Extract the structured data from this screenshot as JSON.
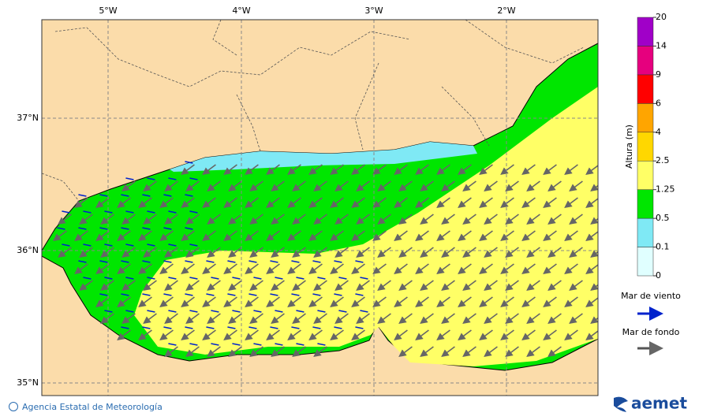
{
  "map": {
    "lon_labels": [
      "5°W",
      "4°W",
      "3°W",
      "2°W"
    ],
    "lat_labels": [
      "37°N",
      "36°N",
      "35°N"
    ]
  },
  "colorbar": {
    "label": "Altura (m)",
    "levels": [
      0,
      0.1,
      0.5,
      1.25,
      2.5,
      4,
      6,
      9,
      14,
      20
    ],
    "colors": [
      "#e0ffff",
      "#7fe9f5",
      "#00e600",
      "#ffff66",
      "#ffd700",
      "#ffa500",
      "#ff0000",
      "#e6007e",
      "#a000c8"
    ]
  },
  "legend": {
    "wind_sea": "Mar de viento",
    "swell": "Mar de fondo"
  },
  "footer": {
    "agency": "Agencia Estatal de Meteorología",
    "logo": "aemet"
  }
}
